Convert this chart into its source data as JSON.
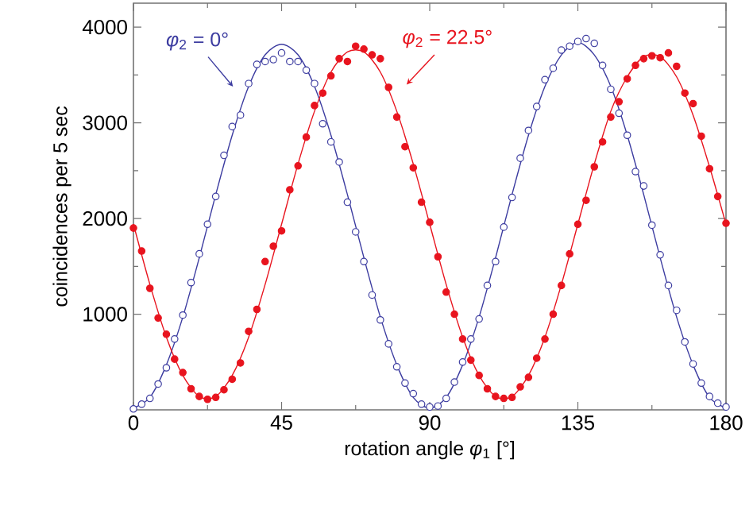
{
  "chart_data": {
    "type": "scatter",
    "xlabel": "rotation angle *φ*$_{1}$ [°]",
    "ylabel": "coincidences per 5 sec",
    "xlim": [
      0,
      180
    ],
    "xticks": [
      0,
      45,
      90,
      135,
      180
    ],
    "ylim": [
      0,
      4250
    ],
    "yticks": [
      1000,
      2000,
      3000,
      4000
    ],
    "grid": false,
    "annotations": [
      "*φ*$_{2}$ = 0°",
      "*φ*$_{2}$ = 22.5°"
    ],
    "series": [
      {
        "marker": "circle",
        "color": "#3c3ca0",
        "x": [
          0,
          2.5,
          5,
          7.5,
          10,
          12.5,
          15,
          17.5,
          20,
          22.5,
          25,
          27.5,
          30,
          32.5,
          35,
          37.5,
          40,
          42.5,
          45,
          47.5,
          50,
          52.5,
          55,
          57.5,
          60,
          62.5,
          65,
          67.5,
          70,
          72.5,
          75,
          77.5,
          80,
          82.5,
          85,
          87.5,
          90,
          92.5,
          95,
          97.5,
          100,
          102.5,
          105,
          107.5,
          110,
          112.5,
          115,
          117.5,
          120,
          122.5,
          125,
          127.5,
          130,
          132.5,
          135,
          137.5,
          140,
          142.5,
          145,
          147.5,
          150,
          152.5,
          155,
          157.5,
          160,
          162.5,
          165,
          167.5,
          170,
          172.5,
          175,
          177.5,
          180
        ],
        "values": [
          10,
          60,
          120,
          270,
          440,
          740,
          990,
          1330,
          1630,
          1940,
          2230,
          2660,
          2960,
          3080,
          3410,
          3610,
          3640,
          3660,
          3730,
          3640,
          3640,
          3550,
          3410,
          2990,
          2800,
          2590,
          2170,
          1860,
          1550,
          1200,
          940,
          690,
          450,
          280,
          170,
          60,
          30,
          40,
          120,
          290,
          500,
          740,
          950,
          1300,
          1550,
          1910,
          2220,
          2630,
          2920,
          3170,
          3450,
          3570,
          3760,
          3800,
          3850,
          3880,
          3830,
          3600,
          3350,
          3100,
          2870,
          2490,
          2340,
          1930,
          1620,
          1300,
          1040,
          710,
          480,
          280,
          140,
          70,
          30
        ]
      },
      {
        "marker": "circle",
        "color": "#e8141e",
        "x": [
          0,
          2.5,
          5,
          7.5,
          10,
          12.5,
          15,
          17.5,
          20,
          22.5,
          25,
          27.5,
          30,
          32.5,
          35,
          37.5,
          40,
          42.5,
          45,
          47.5,
          50,
          52.5,
          55,
          57.5,
          60,
          62.5,
          65,
          67.5,
          70,
          72.5,
          75,
          77.5,
          80,
          82.5,
          85,
          87.5,
          90,
          92.5,
          95,
          97.5,
          100,
          102.5,
          105,
          107.5,
          110,
          112.5,
          115,
          117.5,
          120,
          122.5,
          125,
          127.5,
          130,
          132.5,
          135,
          137.5,
          140,
          142.5,
          145,
          147.5,
          150,
          152.5,
          155,
          157.5,
          160,
          162.5,
          165,
          167.5,
          170,
          172.5,
          175,
          177.5,
          180
        ],
        "values": [
          1900,
          1660,
          1270,
          960,
          790,
          530,
          390,
          220,
          140,
          110,
          130,
          210,
          320,
          490,
          820,
          1050,
          1550,
          1710,
          1870,
          2300,
          2550,
          2850,
          3180,
          3310,
          3490,
          3670,
          3640,
          3800,
          3770,
          3710,
          3670,
          3370,
          3060,
          2750,
          2530,
          2170,
          1960,
          1600,
          1230,
          1000,
          740,
          520,
          360,
          220,
          140,
          120,
          130,
          240,
          340,
          540,
          740,
          1000,
          1300,
          1630,
          1940,
          2190,
          2540,
          2800,
          3060,
          3220,
          3460,
          3600,
          3670,
          3700,
          3680,
          3730,
          3590,
          3310,
          3200,
          2860,
          2520,
          2230,
          1950
        ]
      },
      {
        "type": "line",
        "marker": "none",
        "line_style": "solid",
        "color": "#3c3ca0",
        "x": [
          0,
          5,
          10,
          15,
          20,
          25,
          30,
          35,
          40,
          45,
          50,
          55,
          60,
          65,
          70,
          75,
          80,
          85,
          90,
          95,
          100,
          105,
          110,
          115,
          120,
          125,
          130,
          135,
          140,
          145,
          150,
          155,
          160,
          165,
          170,
          175,
          180
        ],
        "values": [
          20,
          130,
          470,
          970,
          1590,
          2250,
          2870,
          3380,
          3710,
          3820,
          3710,
          3380,
          2870,
          2250,
          1590,
          970,
          470,
          130,
          20,
          130,
          470,
          970,
          1590,
          2250,
          2870,
          3380,
          3710,
          3840,
          3710,
          3380,
          2870,
          2250,
          1590,
          970,
          470,
          130,
          20
        ]
      },
      {
        "type": "line",
        "marker": "none",
        "line_style": "solid",
        "color": "#e8141e",
        "x": [
          0,
          5,
          10,
          15,
          20,
          25,
          30,
          35,
          40,
          45,
          50,
          55,
          60,
          65,
          70,
          75,
          80,
          85,
          90,
          95,
          100,
          105,
          110,
          115,
          120,
          125,
          130,
          135,
          140,
          145,
          150,
          155,
          160,
          165,
          170,
          175,
          180
        ],
        "values": [
          1940,
          1310,
          760,
          360,
          140,
          140,
          360,
          760,
          1310,
          1940,
          2570,
          3120,
          3530,
          3740,
          3740,
          3530,
          3120,
          2570,
          1940,
          1310,
          760,
          360,
          140,
          140,
          360,
          760,
          1310,
          1940,
          2570,
          3120,
          3480,
          3690,
          3690,
          3480,
          3080,
          2540,
          1940
        ]
      }
    ]
  }
}
